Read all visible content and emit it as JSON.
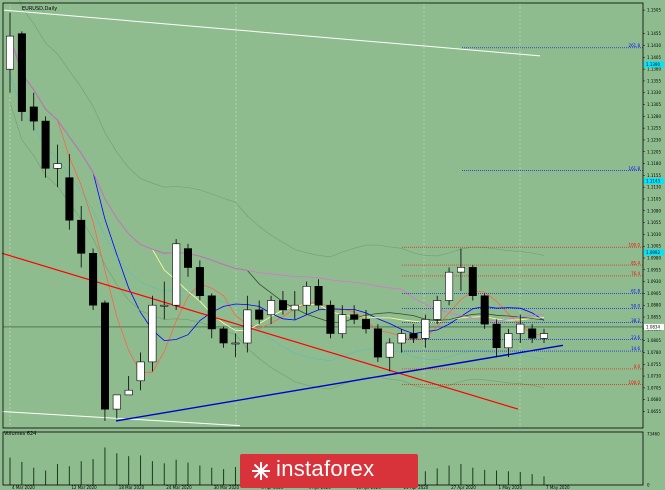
{
  "symbol_label": "EURUSD,Daily",
  "volumes_label": "Volumes 624",
  "watermark": "instaforex",
  "chart_data": {
    "type": "candlestick",
    "ylim": [
      1.062,
      1.152
    ],
    "volume_max": 73460,
    "y_ticks": [
      "1.1505",
      "1.1455",
      "1.1430",
      "1.1405",
      "1.1380",
      "1.1355",
      "1.1330",
      "1.1305",
      "1.1280",
      "1.1255",
      "1.1230",
      "1.1205",
      "1.1180",
      "1.1155",
      "1.1130",
      "1.1105",
      "1.1080",
      "1.1055",
      "1.1030",
      "1.1005",
      "1.0980",
      "1.0955",
      "1.0930",
      "1.0905",
      "1.0880",
      "1.0855",
      "1.0830",
      "1.0805",
      "1.0780",
      "1.0755",
      "1.0730",
      "1.0705",
      "1.0680",
      "1.0655"
    ],
    "highlighted_ticks": [
      {
        "label": "1.1390",
        "color": "#00e5ff"
      },
      {
        "label": "1.1143",
        "color": "#00e5ff"
      },
      {
        "label": "1.0992",
        "color": "#00e5ff"
      },
      {
        "label": "1.0834",
        "color": "#ffffff"
      }
    ],
    "volume_ticks": [
      "73460",
      "0"
    ],
    "x_labels": [
      "4 Mar 2020",
      "12 Mar 2020",
      "18 Mar 2020",
      "24 Mar 2020",
      "30 Mar 2020",
      "3 Apr 2020",
      "9 Apr 2020",
      "15 Apr 2020",
      "21 Apr 2020",
      "27 Apr 2020",
      "1 May 2020",
      "7 May 2020"
    ],
    "candles": [
      {
        "o": 1.138,
        "h": 1.15,
        "l": 1.133,
        "c": 1.145
      },
      {
        "o": 1.1455,
        "h": 1.146,
        "l": 1.127,
        "c": 1.129
      },
      {
        "o": 1.13,
        "h": 1.133,
        "l": 1.125,
        "c": 1.127
      },
      {
        "o": 1.127,
        "h": 1.128,
        "l": 1.115,
        "c": 1.117
      },
      {
        "o": 1.117,
        "h": 1.122,
        "l": 1.113,
        "c": 1.118
      },
      {
        "o": 1.115,
        "h": 1.12,
        "l": 1.104,
        "c": 1.106
      },
      {
        "o": 1.106,
        "h": 1.109,
        "l": 1.096,
        "c": 1.099
      },
      {
        "o": 1.099,
        "h": 1.1,
        "l": 1.087,
        "c": 1.088
      },
      {
        "o": 1.0885,
        "h": 1.089,
        "l": 1.0635,
        "c": 1.066
      },
      {
        "o": 1.066,
        "h": 1.069,
        "l": 1.064,
        "c": 1.069
      },
      {
        "o": 1.069,
        "h": 1.073,
        "l": 1.069,
        "c": 1.07
      },
      {
        "o": 1.072,
        "h": 1.078,
        "l": 1.07,
        "c": 1.076
      },
      {
        "o": 1.076,
        "h": 1.09,
        "l": 1.074,
        "c": 1.088
      },
      {
        "o": 1.088,
        "h": 1.093,
        "l": 1.085,
        "c": 1.088
      },
      {
        "o": 1.088,
        "h": 1.102,
        "l": 1.087,
        "c": 1.101
      },
      {
        "o": 1.1,
        "h": 1.101,
        "l": 1.094,
        "c": 1.096
      },
      {
        "o": 1.096,
        "h": 1.0975,
        "l": 1.089,
        "c": 1.09
      },
      {
        "o": 1.09,
        "h": 1.0905,
        "l": 1.081,
        "c": 1.083
      },
      {
        "o": 1.083,
        "h": 1.0835,
        "l": 1.079,
        "c": 1.08
      },
      {
        "o": 1.08,
        "h": 1.082,
        "l": 1.077,
        "c": 1.08
      },
      {
        "o": 1.08,
        "h": 1.09,
        "l": 1.078,
        "c": 1.087
      },
      {
        "o": 1.087,
        "h": 1.089,
        "l": 1.084,
        "c": 1.085
      },
      {
        "o": 1.086,
        "h": 1.09,
        "l": 1.084,
        "c": 1.089
      },
      {
        "o": 1.089,
        "h": 1.091,
        "l": 1.086,
        "c": 1.087
      },
      {
        "o": 1.087,
        "h": 1.091,
        "l": 1.085,
        "c": 1.088
      },
      {
        "o": 1.088,
        "h": 1.093,
        "l": 1.086,
        "c": 1.092
      },
      {
        "o": 1.092,
        "h": 1.0935,
        "l": 1.087,
        "c": 1.088
      },
      {
        "o": 1.088,
        "h": 1.089,
        "l": 1.081,
        "c": 1.082
      },
      {
        "o": 1.082,
        "h": 1.088,
        "l": 1.081,
        "c": 1.086
      },
      {
        "o": 1.086,
        "h": 1.088,
        "l": 1.084,
        "c": 1.085
      },
      {
        "o": 1.085,
        "h": 1.087,
        "l": 1.082,
        "c": 1.083
      },
      {
        "o": 1.083,
        "h": 1.084,
        "l": 1.076,
        "c": 1.077
      },
      {
        "o": 1.077,
        "h": 1.081,
        "l": 1.074,
        "c": 1.08
      },
      {
        "o": 1.08,
        "h": 1.083,
        "l": 1.078,
        "c": 1.082
      },
      {
        "o": 1.082,
        "h": 1.084,
        "l": 1.08,
        "c": 1.081
      },
      {
        "o": 1.081,
        "h": 1.086,
        "l": 1.079,
        "c": 1.085
      },
      {
        "o": 1.085,
        "h": 1.09,
        "l": 1.084,
        "c": 1.089
      },
      {
        "o": 1.089,
        "h": 1.096,
        "l": 1.088,
        "c": 1.095
      },
      {
        "o": 1.095,
        "h": 1.1,
        "l": 1.091,
        "c": 1.096
      },
      {
        "o": 1.096,
        "h": 1.0965,
        "l": 1.089,
        "c": 1.09
      },
      {
        "o": 1.09,
        "h": 1.0905,
        "l": 1.083,
        "c": 1.084
      },
      {
        "o": 1.084,
        "h": 1.085,
        "l": 1.077,
        "c": 1.079
      },
      {
        "o": 1.079,
        "h": 1.083,
        "l": 1.077,
        "c": 1.082
      },
      {
        "o": 1.082,
        "h": 1.086,
        "l": 1.08,
        "c": 1.084
      },
      {
        "o": 1.083,
        "h": 1.084,
        "l": 1.08,
        "c": 1.081
      },
      {
        "o": 1.081,
        "h": 1.083,
        "l": 1.08,
        "c": 1.082
      }
    ],
    "volumes": [
      38000,
      32000,
      24000,
      20000,
      29000,
      26000,
      33000,
      36000,
      52000,
      44000,
      40000,
      41000,
      33000,
      30000,
      35000,
      31000,
      27000,
      24000,
      22000,
      25000,
      23000,
      21000,
      24000,
      19000,
      22000,
      24000,
      26000,
      23000,
      20000,
      18000,
      21000,
      24000,
      22000,
      18000,
      16000,
      19000,
      23000,
      27000,
      29000,
      24000,
      21000,
      20000,
      19000,
      18000,
      15000,
      12000
    ],
    "fib_levels": [
      {
        "label": "261.8",
        "value": 1.1425,
        "color": "#0000ff"
      },
      {
        "label": "161.8",
        "value": 1.1165,
        "color": "#0000ff"
      },
      {
        "label": "100.0",
        "value": 1.1003,
        "color": "#ff0000"
      },
      {
        "label": "85.4",
        "value": 1.0965,
        "color": "#ff0000"
      },
      {
        "label": "76.4",
        "value": 1.0942,
        "color": "#ff0000"
      },
      {
        "label": "61.8",
        "value": 1.0905,
        "color": "#0000ff"
      },
      {
        "label": "50.0",
        "value": 1.0873,
        "color": "#0000ff"
      },
      {
        "label": "38.2",
        "value": 1.0843,
        "color": "#0000ff"
      },
      {
        "label": "23.6",
        "value": 1.0807,
        "color": "#0000ff"
      },
      {
        "label": "14.6",
        "value": 1.0783,
        "color": "#0000ff"
      },
      {
        "label": "0.0",
        "value": 1.0745,
        "color": "#ff0000"
      },
      {
        "label": "100.0",
        "value": 1.0712,
        "color": "#ff0000"
      }
    ],
    "fib_color_samples": [
      "#d2691e",
      "#ff0000",
      "#0000ff"
    ],
    "colors": {
      "background": "#8fbc8f",
      "bull": "#ffffff",
      "bear": "#000000",
      "ma_red": "#ff6347",
      "ma_blue": "#0000ff",
      "ma_yellow": "#ffff99",
      "ma_dark": "#2f4f2f",
      "ma_violet": "#da70d6",
      "trend_red": "#ff0000",
      "trend_blue": "#0000cd",
      "trend_white": "#ffffff"
    }
  }
}
